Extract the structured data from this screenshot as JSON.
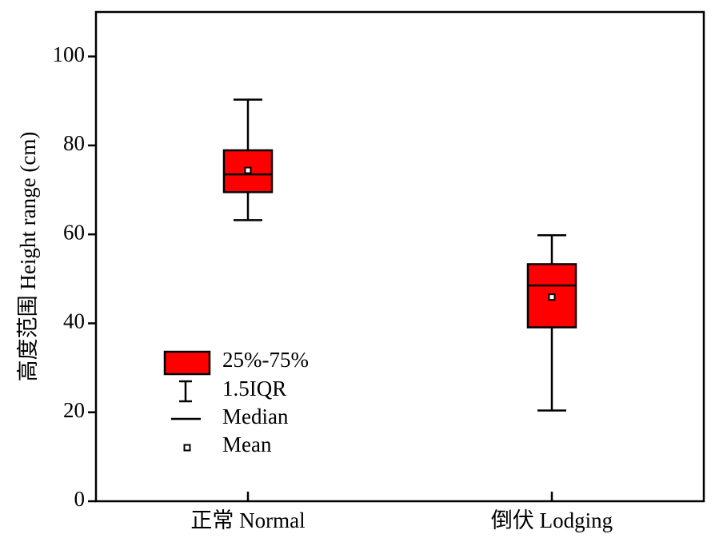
{
  "chart_data": {
    "type": "box",
    "ylabel": "高度范围 Height range (cm)",
    "categories": [
      "正常 Normal",
      "倒伏 Lodging"
    ],
    "whisker_high": [
      90.3,
      59.8
    ],
    "q3": [
      78.9,
      53.3
    ],
    "median": [
      73.5,
      48.5
    ],
    "q1": [
      69.5,
      39.1
    ],
    "whisker_low": [
      63.2,
      20.4
    ],
    "mean": [
      74.4,
      45.9
    ],
    "color": "#ff0000",
    "ylim": [
      0,
      110
    ],
    "yticks": [
      0,
      20,
      40,
      60,
      80,
      100
    ],
    "legend": [
      "25%-75%",
      "1.5IQR",
      "Median",
      "Mean"
    ]
  }
}
